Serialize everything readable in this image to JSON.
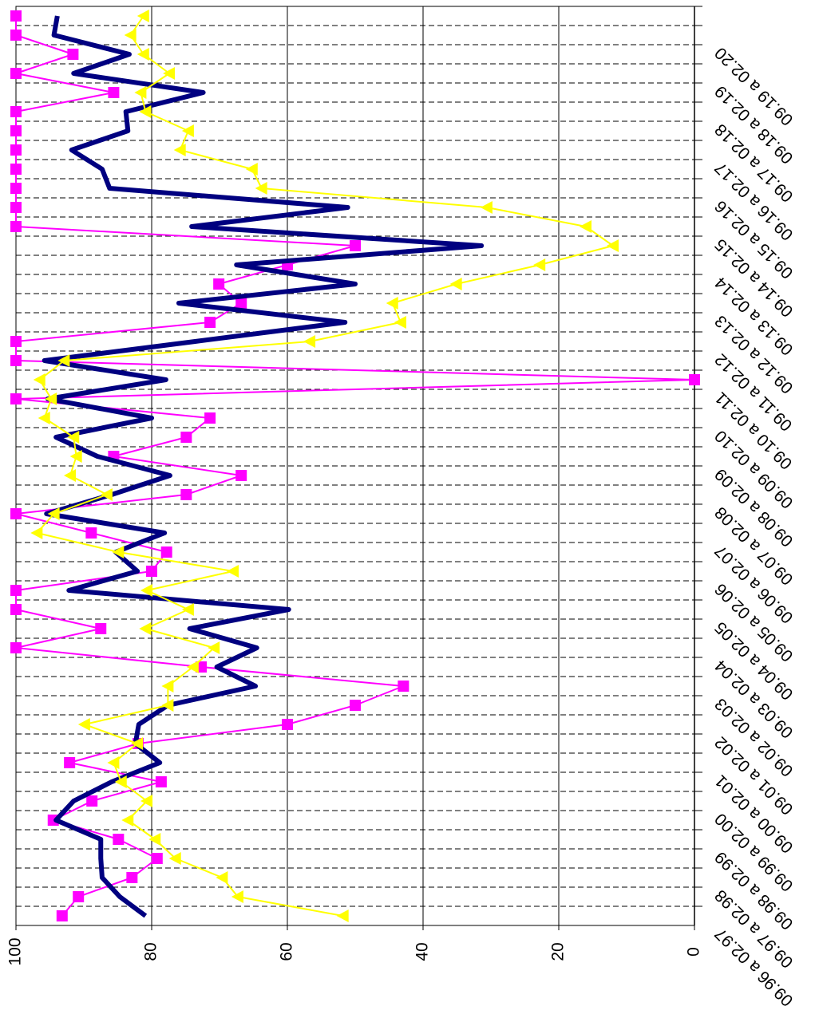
{
  "chart_data": {
    "type": "line",
    "categories": [
      "09.96 a 02.97",
      null,
      "09.97 a 02.98",
      null,
      "09.98 a 02.99",
      null,
      "09.99 a 02.00",
      null,
      "09.00 a 02.01",
      null,
      "09.01 a 02.02",
      null,
      "09.02 a 02.03",
      null,
      "09.03 a 02.04",
      null,
      "09.04 a 02.05",
      null,
      "09.05 a 02.06",
      null,
      "09.06 a 02.07",
      null,
      "09.07 a 02.08",
      null,
      "09.08 a 02.09",
      null,
      "09.09 a 02.10",
      null,
      "09.10 a 02.11",
      null,
      "09.11 a 02.12",
      null,
      "09.12 a 02.13",
      null,
      "09.13 a 02.14",
      null,
      "09.14 a 02.15",
      null,
      "09.15 a 02.16",
      null,
      "09.16 a 02.17",
      null,
      "09.17 a 02.18",
      null,
      "09.18 a 02.19",
      null,
      "09.19 a 02.20",
      null
    ],
    "series": [
      {
        "color": "#ff00ff",
        "marker": "square",
        "width": 2,
        "values": [
          93.2,
          90.8,
          82.9,
          79.2,
          84.9,
          94.5,
          88.8,
          78.6,
          92.1,
          82,
          60,
          50,
          42.9,
          72.7,
          100,
          87.5,
          100,
          100,
          80,
          77.8,
          88.9,
          100,
          74.9,
          66.8,
          85.6,
          74.9,
          71.4,
          100,
          0,
          100,
          100,
          71.4,
          66.8,
          70.1,
          60,
          50,
          100,
          100,
          100,
          100,
          100,
          100,
          100,
          85.6,
          100,
          91.6,
          100,
          100
        ]
      },
      {
        "color": "#000080",
        "marker": "none",
        "width": 6,
        "values": [
          80.9,
          84.7,
          87.3,
          87.5,
          87.5,
          94.1,
          91.5,
          85.9,
          78.8,
          82.4,
          81.9,
          77.6,
          64.7,
          70.4,
          64.5,
          74.4,
          59.8,
          92.2,
          82.1,
          85.3,
          78.1,
          95.5,
          85.9,
          77.3,
          88,
          94.1,
          80,
          95.3,
          77.9,
          95.8,
          73.6,
          51.5,
          76,
          50,
          67.5,
          31.4,
          74.1,
          51.1,
          86.2,
          87.3,
          91.8,
          83.5,
          83.8,
          72.4,
          91.5,
          83.3,
          94.4,
          93.9
        ]
      },
      {
        "color": "#ffff00",
        "marker": "triangle",
        "width": 2,
        "values": [
          51.8,
          67.3,
          69.6,
          76.5,
          79.5,
          83.5,
          80.7,
          84.5,
          85.6,
          82.1,
          89.9,
          77.6,
          77.6,
          73.9,
          70.8,
          80.9,
          74.6,
          80.7,
          68,
          84.9,
          96.9,
          94.4,
          86.6,
          92,
          91.1,
          91.5,
          95.8,
          94.8,
          96.5,
          92.9,
          56.7,
          43.3,
          44.5,
          35.1,
          22.8,
          12,
          16,
          30.6,
          63.8,
          65.2,
          75.8,
          74.6,
          80.9,
          81.6,
          77.4,
          81.2,
          83.1,
          81.2
        ]
      }
    ],
    "ylim": [
      0,
      100
    ],
    "yticks": [
      0,
      20,
      40,
      60,
      80,
      100
    ],
    "grid": true
  }
}
